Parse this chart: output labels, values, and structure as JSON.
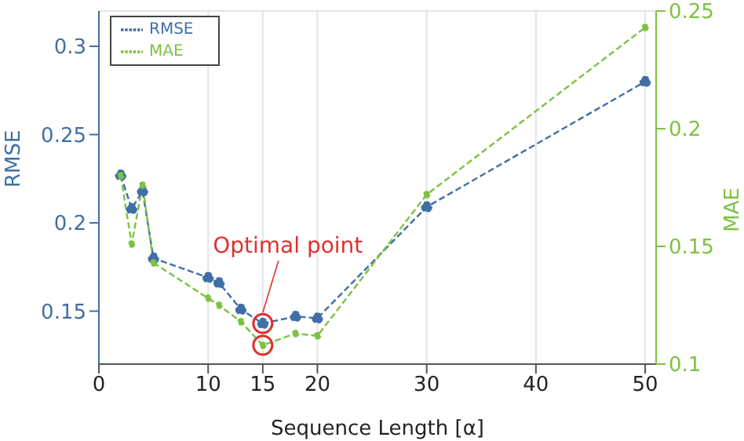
{
  "chart_data": {
    "type": "line",
    "xlabel": "Sequence Length [α]",
    "ylabel": "RMSE",
    "y2label": "MAE",
    "x": [
      2,
      3,
      4,
      5,
      10,
      11,
      13,
      15,
      18,
      20,
      30,
      50
    ],
    "series": [
      {
        "name": "RMSE",
        "color": "#3f6fa6",
        "values": [
          0.227,
          0.208,
          0.218,
          0.18,
          0.169,
          0.166,
          0.151,
          0.143,
          0.147,
          0.146,
          0.209,
          0.28
        ]
      },
      {
        "name": "MAE",
        "color": "#7cc242",
        "axis": "y2",
        "values": [
          0.18,
          0.151,
          0.176,
          0.143,
          0.128,
          0.125,
          0.118,
          0.108,
          0.113,
          0.112,
          0.172,
          0.243
        ]
      }
    ],
    "xlim": [
      0,
      51
    ],
    "xticks": [
      0,
      10,
      15,
      20,
      30,
      40,
      50
    ],
    "ylim": [
      0.12,
      0.32
    ],
    "yticks": [
      0.15,
      0.2,
      0.25,
      0.3
    ],
    "y2lim": [
      0.1,
      0.25
    ],
    "y2ticks": [
      0.1,
      0.15,
      0.2,
      0.25
    ],
    "annotations": [
      {
        "text": "Optimal point",
        "x": 15,
        "y": 0.143
      }
    ],
    "grid": true,
    "legend": "top left",
    "marker": "circle",
    "line_style": "dashed"
  }
}
